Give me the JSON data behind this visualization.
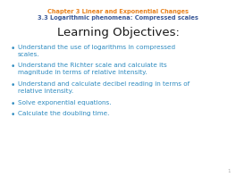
{
  "background_color": "#ffffff",
  "header_line1": "Chapter 3 Linear and Exponential Changes",
  "header_line2": "3.3 Logarithmic phenomena: Compressed scales",
  "header_color1": "#e8821e",
  "header_color2": "#3b5998",
  "title": "Learning Objectives:",
  "title_color": "#1a1a1a",
  "title_fontsize": 9.5,
  "header_fontsize": 4.8,
  "bullet_color": "#2e8bc0",
  "bullets": [
    "Understand the use of logarithms in compressed\nscales.",
    "Understand the Richter scale and calculate its\nmagnitude in terms of relative intensity.",
    "Understand and calculate decibel reading in terms of\nrelative intensity.",
    "Solve exponential equations.",
    "Calculate the doubling time."
  ],
  "bullet_fontsize": 5.2,
  "page_number": "1",
  "page_number_color": "#aaaaaa",
  "page_number_fontsize": 4.0
}
